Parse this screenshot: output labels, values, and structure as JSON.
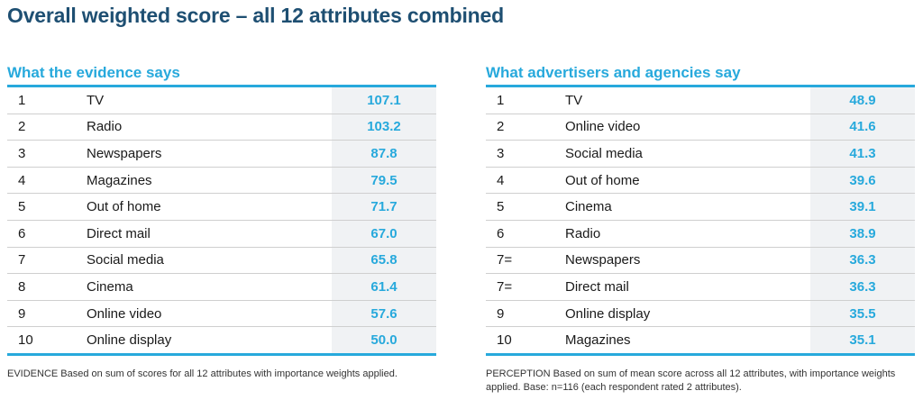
{
  "title": "Overall weighted score – all 12 attributes combined",
  "evidence": {
    "heading": "What the evidence says",
    "rows": [
      {
        "rank": "1",
        "name": "TV",
        "score": "107.1"
      },
      {
        "rank": "2",
        "name": "Radio",
        "score": "103.2"
      },
      {
        "rank": "3",
        "name": "Newspapers",
        "score": "87.8"
      },
      {
        "rank": "4",
        "name": "Magazines",
        "score": "79.5"
      },
      {
        "rank": "5",
        "name": "Out of home",
        "score": "71.7"
      },
      {
        "rank": "6",
        "name": "Direct mail",
        "score": "67.0"
      },
      {
        "rank": "7",
        "name": "Social media",
        "score": "65.8"
      },
      {
        "rank": "8",
        "name": "Cinema",
        "score": "61.4"
      },
      {
        "rank": "9",
        "name": "Online video",
        "score": "57.6"
      },
      {
        "rank": "10",
        "name": "Online display",
        "score": "50.0"
      }
    ],
    "footnote": "EVIDENCE Based on sum of scores for all 12 attributes with importance weights applied."
  },
  "perception": {
    "heading": "What advertisers and agencies say",
    "rows": [
      {
        "rank": "1",
        "name": "TV",
        "score": "48.9"
      },
      {
        "rank": "2",
        "name": "Online video",
        "score": "41.6"
      },
      {
        "rank": "3",
        "name": "Social media",
        "score": "41.3"
      },
      {
        "rank": "4",
        "name": "Out of home",
        "score": "39.6"
      },
      {
        "rank": "5",
        "name": "Cinema",
        "score": "39.1"
      },
      {
        "rank": "6",
        "name": "Radio",
        "score": "38.9"
      },
      {
        "rank": "7=",
        "name": "Newspapers",
        "score": "36.3"
      },
      {
        "rank": "7=",
        "name": "Direct mail",
        "score": "36.3"
      },
      {
        "rank": "9",
        "name": "Online display",
        "score": "35.5"
      },
      {
        "rank": "10",
        "name": "Magazines",
        "score": "35.1"
      }
    ],
    "footnote": "PERCEPTION Based on sum of mean score across all 12 attributes, with importance weights applied.  Base: n=116 (each respondent rated 2 attributes)."
  },
  "colors": {
    "title": "#1e4f72",
    "accent": "#27a9dc",
    "score_cell_bg": "#f0f2f4"
  }
}
